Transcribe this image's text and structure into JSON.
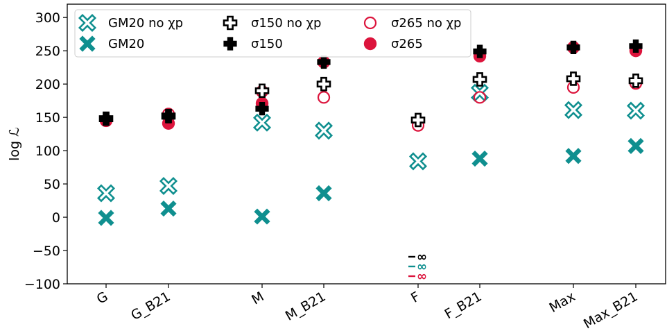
{
  "chart_data": {
    "type": "scatter",
    "ylabel": "log ℒ",
    "ylim": [
      -100,
      320
    ],
    "yticks": [
      -100,
      -50,
      0,
      50,
      100,
      150,
      200,
      250,
      300
    ],
    "categories": [
      "G",
      "G_B21",
      "M",
      "M_B21",
      "F",
      "F_B21",
      "Max",
      "Max_B21"
    ],
    "grid": false,
    "legend_position": "top-left",
    "series": [
      {
        "name": "GM20 no χp",
        "marker": "x-open",
        "color": "#0f8f8f",
        "values": [
          36,
          47,
          142,
          130,
          84,
          187,
          161,
          160
        ]
      },
      {
        "name": "GM20",
        "marker": "x-filled",
        "color": "#0f8f8f",
        "values": [
          -1,
          13,
          1,
          36,
          null,
          88,
          92,
          107
        ]
      },
      {
        "name": "σ150 no χp",
        "marker": "plus-open",
        "color": "#000000",
        "values": [
          148,
          152,
          190,
          200,
          146,
          207,
          208,
          205
        ]
      },
      {
        "name": "σ150",
        "marker": "plus-filled",
        "color": "#000000",
        "values": [
          148,
          151,
          163,
          233,
          null,
          249,
          255,
          257
        ]
      },
      {
        "name": "σ265 no χp",
        "marker": "circle-open",
        "color": "#dc143c",
        "values": [
          145,
          155,
          189,
          180,
          138,
          180,
          195,
          201
        ]
      },
      {
        "name": "σ265",
        "marker": "circle-filled",
        "color": "#dc143c",
        "values": [
          145,
          141,
          171,
          233,
          null,
          242,
          255,
          250
        ]
      }
    ],
    "annotations": [
      {
        "category": "F",
        "series": "σ150",
        "text": "∞",
        "color": "#000000",
        "value_label": "-∞"
      },
      {
        "category": "F",
        "series": "GM20",
        "text": "∞",
        "color": "#0f8f8f",
        "value_label": "-∞"
      },
      {
        "category": "F",
        "series": "σ265",
        "text": "∞",
        "color": "#dc143c",
        "value_label": "-∞"
      }
    ]
  }
}
